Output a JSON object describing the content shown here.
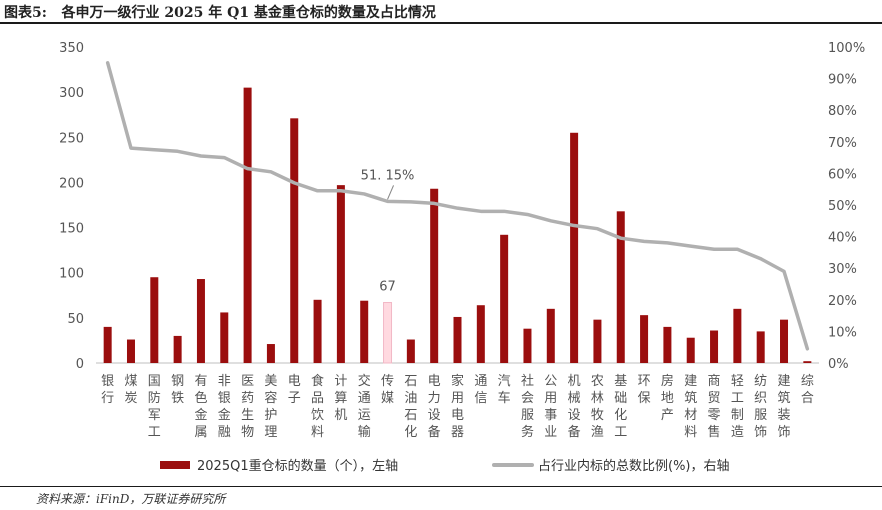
{
  "header": {
    "title": "图表5:   各申万一级行业 2025 年 Q1 基金重仓标的数量及占比情况"
  },
  "footer": {
    "source": "资料来源：iFinD，万联证券研究所"
  },
  "chart_data": {
    "type": "bar",
    "categories": [
      "银行",
      "煤炭",
      "国防军工",
      "钢铁",
      "有色金属",
      "非银金融",
      "医药生物",
      "美容护理",
      "电子",
      "食品饮料",
      "计算机",
      "交通运输",
      "传媒",
      "石油石化",
      "电力设备",
      "家用电器",
      "通信",
      "汽车",
      "社会服务",
      "公用事业",
      "机械设备",
      "农林牧渔",
      "基础化工",
      "环保",
      "房地产",
      "建筑材料",
      "商贸零售",
      "轻工制造",
      "纺织服饰",
      "建筑装饰",
      "综合"
    ],
    "series": [
      {
        "name": "2025Q1重仓标的数量（个），左轴",
        "axis": "left",
        "type": "bar",
        "color": "#9b0e0e",
        "values": [
          40,
          26,
          95,
          30,
          93,
          56,
          305,
          21,
          271,
          70,
          197,
          69,
          67,
          26,
          193,
          51,
          64,
          142,
          38,
          60,
          255,
          48,
          168,
          53,
          40,
          28,
          36,
          60,
          35,
          48,
          2
        ]
      },
      {
        "name": "占行业内标的总数比例(%)，右轴",
        "axis": "right",
        "type": "line",
        "color": "#b0b0b0",
        "values": [
          95,
          68,
          67.5,
          67,
          65.5,
          65,
          61.5,
          60.5,
          57,
          54.5,
          54.5,
          53.5,
          51.15,
          51,
          50.5,
          49,
          48,
          48,
          47,
          45,
          43.5,
          42.5,
          39.5,
          38.5,
          38,
          37,
          36,
          36,
          33,
          29,
          4.5
        ]
      }
    ],
    "highlight": {
      "category": "传媒",
      "bar_label": "67",
      "bar_color": "#ffd9e0",
      "line_label": "51. 15%"
    },
    "y_left": {
      "min": 0,
      "max": 350,
      "ticks": [
        "0",
        "50",
        "100",
        "150",
        "200",
        "250",
        "300",
        "350"
      ]
    },
    "y_right": {
      "min": 0,
      "max": 100,
      "ticks": [
        "0%",
        "10%",
        "20%",
        "30%",
        "40%",
        "50%",
        "60%",
        "70%",
        "80%",
        "90%",
        "100%"
      ]
    },
    "legend": {
      "position": "bottom"
    },
    "grid": false
  }
}
